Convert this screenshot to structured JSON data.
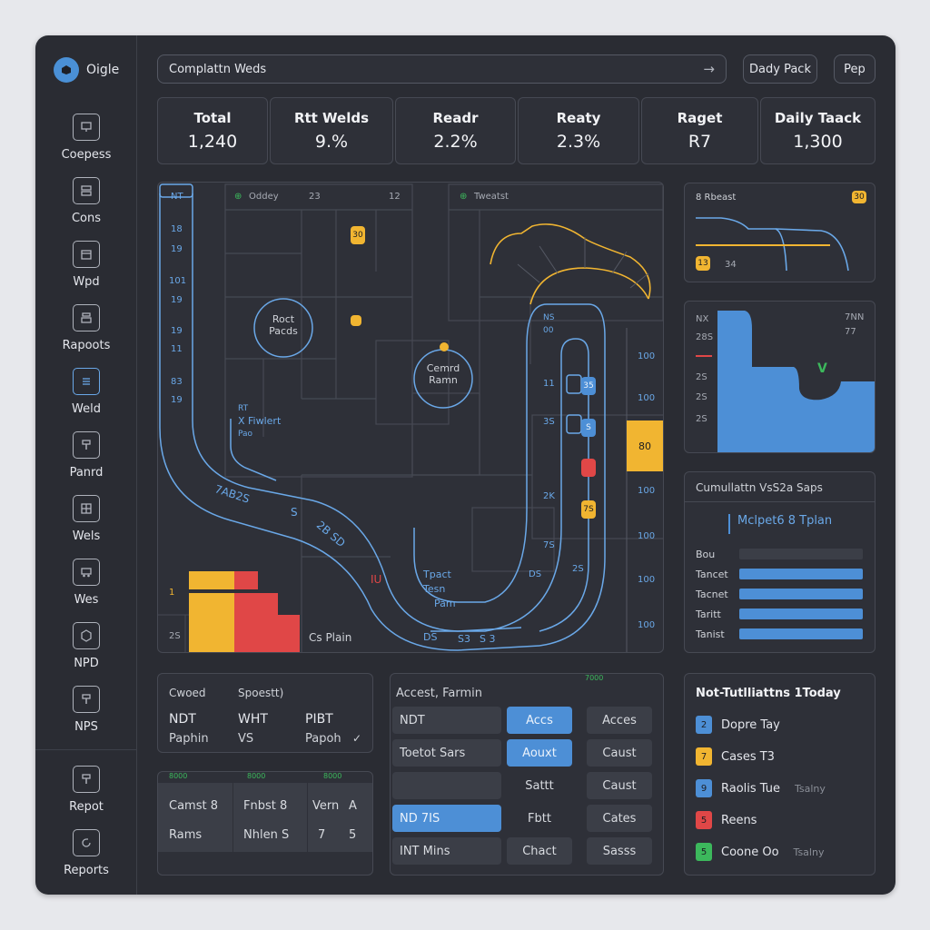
{
  "app": {
    "name": "Oigle"
  },
  "search": {
    "value": "Complattn Weds"
  },
  "topbar": {
    "btn1": "Dady Pack",
    "btn2": "Pep"
  },
  "sidebar": {
    "items": [
      {
        "label": "Coepess",
        "icon": "monitor-icon"
      },
      {
        "label": "Cons",
        "icon": "server-icon"
      },
      {
        "label": "Wpd",
        "icon": "box-icon"
      },
      {
        "label": "Rapoots",
        "icon": "stack-icon"
      },
      {
        "label": "Weld",
        "icon": "list-icon"
      },
      {
        "label": "Panrd",
        "icon": "tool-icon"
      },
      {
        "label": "Wels",
        "icon": "grid-icon"
      },
      {
        "label": "Wes",
        "icon": "truck-icon"
      },
      {
        "label": "NPD",
        "icon": "hexagon-icon"
      },
      {
        "label": "NPS",
        "icon": "tool-icon"
      }
    ],
    "bottom": [
      {
        "label": "Repot",
        "icon": "report-icon"
      },
      {
        "label": "Reports",
        "icon": "refresh-icon"
      }
    ]
  },
  "stats": [
    {
      "label": "Total",
      "value": "1,240"
    },
    {
      "label": "Rtt Welds",
      "value": "9.%"
    },
    {
      "label": "Readr",
      "value": "2.2%"
    },
    {
      "label": "Reaty",
      "value": "2.3%"
    },
    {
      "label": "Raget",
      "value": "R7"
    },
    {
      "label": "Daily Taack",
      "value": "1,300"
    }
  ],
  "map": {
    "left_track_title": "NT",
    "left_track_labels": [
      "18",
      "19",
      "101",
      "19",
      "19",
      "11",
      "83",
      "19"
    ],
    "oddey": {
      "title": "Oddey",
      "n1": "23",
      "n2": "12"
    },
    "tweatst": {
      "title": "Tweatst"
    },
    "roct": {
      "line1": "Roct",
      "line2": "Pacds"
    },
    "cemrd": {
      "line1": "Cemrd",
      "line2": "Ramn"
    },
    "fiwlert": {
      "line1": "RT",
      "line2": "X Fiwlert",
      "line3": "Pao"
    },
    "curve_labels": {
      "a": "7AB2S",
      "b": "S",
      "c": "2B SD",
      "d": "IU",
      "e": "DS",
      "f": "S3",
      "g": "S 3",
      "h": "S"
    },
    "tpact": {
      "line1": "Tpact",
      "line2": "Tesn",
      "line3": "Pam"
    },
    "inner": {
      "line1": "NS",
      "line2": "00"
    },
    "mid_labels": [
      "11",
      "3S",
      "2K",
      "7S",
      "DS",
      "2S"
    ],
    "right_scale": [
      "100",
      "100",
      "100",
      "100",
      "100",
      "100"
    ],
    "right_box": "80",
    "mini_badges": [
      "35",
      "S",
      "",
      "7S"
    ],
    "small_badge": "30",
    "bottom_left": {
      "num": "1",
      "num2": "2S",
      "plan": "Cs Plain"
    }
  },
  "rbeast": {
    "title": "8 Rbeast",
    "badge": "30",
    "badge2": "13",
    "n": "34"
  },
  "area": {
    "labels_left": [
      "NX",
      "28S",
      "2S",
      "2S",
      "2S"
    ],
    "labels_right": [
      "7NN",
      "77"
    ]
  },
  "cumulative": {
    "title": "Cumullattn VsS2a Saps",
    "subtitle": "Mclpet6 8 Tplan",
    "rows": [
      {
        "label": "Bou",
        "value": 0.0
      },
      {
        "label": "Tancet",
        "value": 1.0
      },
      {
        "label": "Tacnet",
        "value": 1.0
      },
      {
        "label": "Taritt",
        "value": 1.0
      },
      {
        "label": "Tanist",
        "value": 1.0
      }
    ]
  },
  "crossed": {
    "headers": [
      "Cwoed",
      "Spoestt)"
    ],
    "row1": [
      "NDT",
      "WHT",
      "PIBT"
    ],
    "row2": [
      "Paphin",
      "VS",
      "Papoh"
    ]
  },
  "camst": {
    "marks": [
      "8000",
      "8000",
      "8000"
    ],
    "row1": [
      "Camst 8",
      "Fnbst 8",
      "Vern",
      "A"
    ],
    "row2": [
      "Rams",
      "Nhlen S",
      "7",
      "5"
    ]
  },
  "access": {
    "title": "Accest, Farmin",
    "mark": "7000",
    "rows": [
      [
        "NDT",
        "Accs",
        "Acces"
      ],
      [
        "Toetot Sars",
        "Aouxt",
        "Caust"
      ],
      [
        "",
        "Sattt",
        "Caust"
      ],
      [
        "ND 7IS",
        "Fbtt",
        "Cates"
      ],
      [
        "INT Mins",
        "Chact",
        "Sasss"
      ]
    ]
  },
  "notifications": {
    "title": "Not-Tutlliattns 1Today",
    "items": [
      {
        "num": "2",
        "text": "Dopre Tay",
        "sub": "",
        "color": "#4d8fd6"
      },
      {
        "num": "7",
        "text": "Cases T3",
        "sub": "",
        "color": "#f1b531"
      },
      {
        "num": "9",
        "text": "Raolis Tue",
        "sub": "Tsalny",
        "color": "#4d8fd6"
      },
      {
        "num": "5",
        "text": "Reens",
        "sub": "",
        "color": "#e04747"
      },
      {
        "num": "5",
        "text": "Coone Oo",
        "sub": "Tsalny",
        "color": "#3cb85c"
      }
    ]
  },
  "colors": {
    "accent": "#4d8fd6",
    "yellow": "#f1b531",
    "red": "#e04747",
    "green": "#3cb85c",
    "track": "#6aa8e8"
  }
}
